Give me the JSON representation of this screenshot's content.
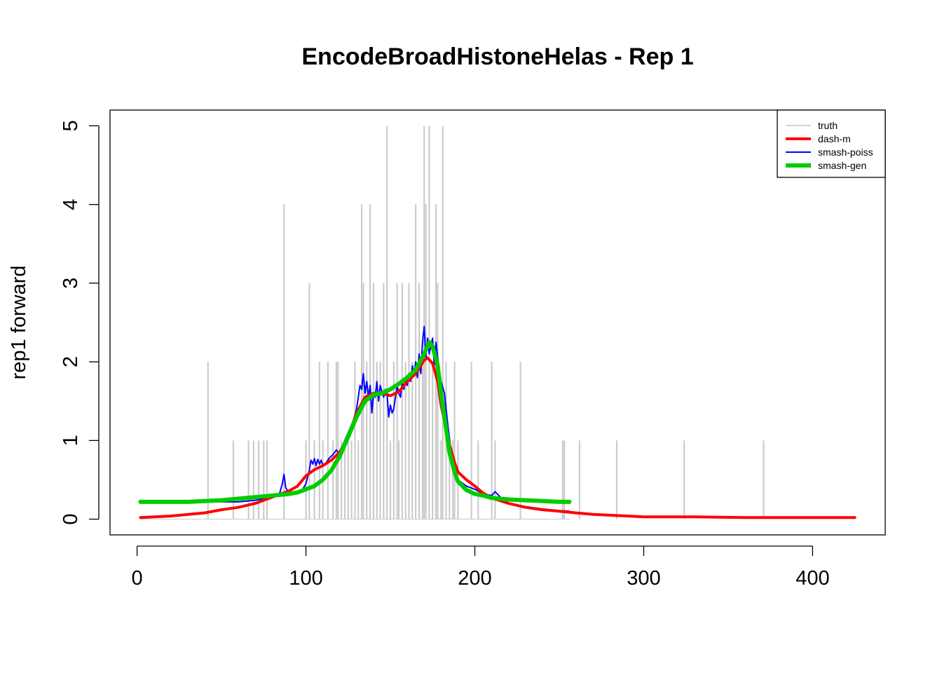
{
  "chart_data": {
    "type": "line",
    "title": "EncodeBroadHistoneHelas - Rep 1",
    "xlabel": "",
    "ylabel": "rep1 forward",
    "xlim": [
      -16,
      443
    ],
    "ylim": [
      -0.2,
      5.2
    ],
    "xticks": [
      0,
      100,
      200,
      300,
      400
    ],
    "yticks": [
      0,
      1,
      2,
      3,
      4,
      5
    ],
    "legend_position": "top-right",
    "truth": {
      "name": "truth",
      "color": "#c8c8c8",
      "spikes": [
        [
          42,
          2
        ],
        [
          57,
          1
        ],
        [
          66,
          1
        ],
        [
          69,
          1
        ],
        [
          72,
          1
        ],
        [
          75,
          1
        ],
        [
          77,
          1
        ],
        [
          87,
          4
        ],
        [
          100,
          1
        ],
        [
          102,
          3
        ],
        [
          105,
          1
        ],
        [
          108,
          2
        ],
        [
          110,
          1
        ],
        [
          113,
          2
        ],
        [
          116,
          1
        ],
        [
          118,
          2
        ],
        [
          119,
          2
        ],
        [
          121,
          1
        ],
        [
          123,
          1
        ],
        [
          125,
          1
        ],
        [
          127,
          1
        ],
        [
          129,
          2
        ],
        [
          131,
          1
        ],
        [
          133,
          4
        ],
        [
          134,
          3
        ],
        [
          136,
          2
        ],
        [
          138,
          4
        ],
        [
          140,
          3
        ],
        [
          142,
          2
        ],
        [
          144,
          2
        ],
        [
          146,
          3
        ],
        [
          148,
          5
        ],
        [
          150,
          1
        ],
        [
          152,
          2
        ],
        [
          154,
          3
        ],
        [
          155,
          1
        ],
        [
          157,
          3
        ],
        [
          159,
          2
        ],
        [
          161,
          3
        ],
        [
          163,
          2
        ],
        [
          165,
          4
        ],
        [
          167,
          3
        ],
        [
          169,
          2
        ],
        [
          170,
          5
        ],
        [
          171,
          4
        ],
        [
          173,
          5
        ],
        [
          175,
          2
        ],
        [
          177,
          4
        ],
        [
          178,
          3
        ],
        [
          180,
          1
        ],
        [
          181,
          5
        ],
        [
          183,
          2
        ],
        [
          185,
          1
        ],
        [
          187,
          1
        ],
        [
          188,
          2
        ],
        [
          190,
          1
        ],
        [
          198,
          2
        ],
        [
          202,
          1
        ],
        [
          210,
          2
        ],
        [
          212,
          1
        ],
        [
          227,
          2
        ],
        [
          252,
          1
        ],
        [
          253,
          1
        ],
        [
          262,
          1
        ],
        [
          284,
          1
        ],
        [
          324,
          1
        ],
        [
          371,
          1
        ]
      ]
    },
    "series": [
      {
        "name": "dash-m",
        "color": "#ff0000",
        "x": [
          2,
          20,
          40,
          50,
          60,
          70,
          80,
          90,
          95,
          100,
          105,
          110,
          115,
          120,
          125,
          130,
          135,
          140,
          145,
          150,
          155,
          160,
          165,
          170,
          172,
          175,
          178,
          180,
          183,
          185,
          188,
          190,
          195,
          200,
          205,
          210,
          220,
          230,
          240,
          250,
          260,
          270,
          280,
          300,
          330,
          360,
          390,
          425
        ],
        "y": [
          0.02,
          0.04,
          0.08,
          0.12,
          0.15,
          0.2,
          0.28,
          0.36,
          0.42,
          0.55,
          0.63,
          0.68,
          0.75,
          0.85,
          1.05,
          1.35,
          1.55,
          1.6,
          1.6,
          1.57,
          1.62,
          1.75,
          1.85,
          2.02,
          2.05,
          1.98,
          1.75,
          1.45,
          1.15,
          0.95,
          0.72,
          0.6,
          0.5,
          0.42,
          0.33,
          0.27,
          0.2,
          0.15,
          0.12,
          0.1,
          0.08,
          0.06,
          0.05,
          0.03,
          0.03,
          0.02,
          0.02,
          0.02
        ]
      },
      {
        "name": "smash-poiss",
        "color": "#0000ff",
        "x": [
          2,
          40,
          60,
          70,
          80,
          84,
          86,
          87,
          88,
          90,
          94,
          97,
          100,
          102,
          103,
          104,
          105,
          106,
          107,
          108,
          109,
          110,
          112,
          114,
          116,
          118,
          120,
          122,
          124,
          126,
          128,
          130,
          131,
          132,
          133,
          134,
          135,
          136,
          137,
          138,
          139,
          140,
          141,
          142,
          143,
          144,
          145,
          146,
          147,
          148,
          149,
          150,
          151,
          152,
          153,
          154,
          155,
          156,
          157,
          158,
          159,
          160,
          161,
          162,
          163,
          164,
          165,
          166,
          167,
          168,
          169,
          170,
          171,
          172,
          173,
          174,
          175,
          176,
          177,
          178,
          179,
          180,
          182,
          184,
          186,
          188,
          190,
          195,
          200,
          205,
          210,
          212,
          215,
          220,
          230,
          240,
          250,
          256
        ],
        "y": [
          0.22,
          0.22,
          0.22,
          0.24,
          0.28,
          0.3,
          0.45,
          0.57,
          0.4,
          0.33,
          0.32,
          0.34,
          0.45,
          0.62,
          0.75,
          0.7,
          0.77,
          0.68,
          0.76,
          0.7,
          0.75,
          0.68,
          0.72,
          0.78,
          0.82,
          0.88,
          0.82,
          0.95,
          1.05,
          1.15,
          1.25,
          1.4,
          1.55,
          1.7,
          1.65,
          1.85,
          1.6,
          1.75,
          1.55,
          1.7,
          1.35,
          1.6,
          1.55,
          1.75,
          1.5,
          1.7,
          1.62,
          1.55,
          1.65,
          1.6,
          1.3,
          1.45,
          1.35,
          1.4,
          1.55,
          1.7,
          1.6,
          1.55,
          1.75,
          1.65,
          1.8,
          1.7,
          1.85,
          1.75,
          1.95,
          1.85,
          2.0,
          1.8,
          2.1,
          1.85,
          2.25,
          2.45,
          2.05,
          2.3,
          2.1,
          2.2,
          2.3,
          1.95,
          2.25,
          2.05,
          1.9,
          1.75,
          1.6,
          1.2,
          0.85,
          0.65,
          0.5,
          0.42,
          0.38,
          0.32,
          0.3,
          0.35,
          0.28,
          0.2,
          0.16,
          0.13,
          0.11,
          0.1
        ]
      },
      {
        "name": "smash-gen",
        "color": "#00cc00",
        "x": [
          2,
          30,
          50,
          70,
          80,
          90,
          95,
          100,
          105,
          110,
          115,
          120,
          125,
          130,
          135,
          140,
          145,
          150,
          155,
          160,
          165,
          170,
          173,
          175,
          178,
          180,
          183,
          185,
          188,
          190,
          195,
          200,
          205,
          210,
          220,
          230,
          240,
          250,
          256
        ],
        "y": [
          0.22,
          0.22,
          0.24,
          0.28,
          0.3,
          0.32,
          0.34,
          0.38,
          0.42,
          0.5,
          0.62,
          0.8,
          1.05,
          1.3,
          1.5,
          1.58,
          1.6,
          1.65,
          1.72,
          1.8,
          1.9,
          2.1,
          2.25,
          2.2,
          1.95,
          1.6,
          1.15,
          0.85,
          0.6,
          0.48,
          0.37,
          0.32,
          0.3,
          0.27,
          0.25,
          0.24,
          0.23,
          0.22,
          0.22
        ]
      }
    ]
  }
}
